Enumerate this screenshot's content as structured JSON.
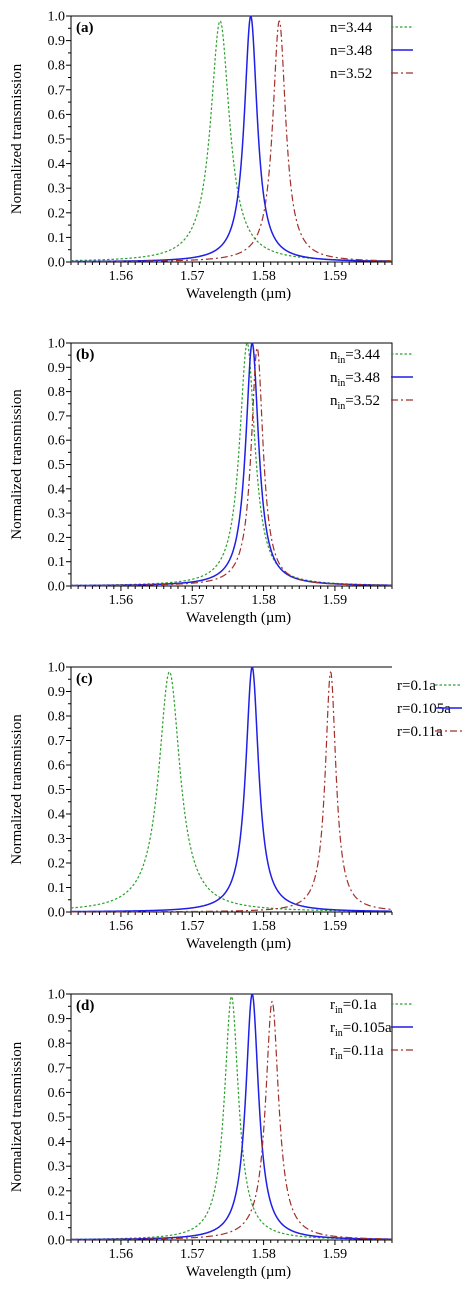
{
  "chart_data": [
    {
      "type": "line",
      "panel_label": "(a)",
      "xlabel": "Wavelength (µm)",
      "ylabel": "Normalized transmission",
      "xlim": [
        1.553,
        1.598
      ],
      "ylim": [
        0.0,
        1.0
      ],
      "x_ticks": [
        "1.56",
        "1.57",
        "1.58",
        "1.59"
      ],
      "y_ticks": [
        "0.0",
        "0.1",
        "0.2",
        "0.3",
        "0.4",
        "0.5",
        "0.6",
        "0.7",
        "0.8",
        "0.9",
        "1.0"
      ],
      "legend": "top-right",
      "grid": false,
      "series": [
        {
          "name": "n=3.44",
          "name_base": "n",
          "name_sub": "",
          "name_rest": "=3.44",
          "color": "#2ca02c",
          "style": "dotted",
          "center": 1.5739,
          "hwhm": 0.0016,
          "peak": 0.98
        },
        {
          "name": "n=3.48",
          "name_base": "n",
          "name_sub": "",
          "name_rest": "=3.48",
          "color": "#1f1fe6",
          "style": "solid",
          "center": 1.5782,
          "hwhm": 0.0011,
          "peak": 1.0
        },
        {
          "name": "n=3.52",
          "name_base": "n",
          "name_sub": "",
          "name_rest": "=3.52",
          "color": "#a0302a",
          "style": "dashdot",
          "center": 1.5822,
          "hwhm": 0.0011,
          "peak": 0.98
        }
      ]
    },
    {
      "type": "line",
      "panel_label": "(b)",
      "xlabel": "Wavelength (µm)",
      "ylabel": "Normalized transmission",
      "xlim": [
        1.553,
        1.598
      ],
      "ylim": [
        0.0,
        1.0
      ],
      "x_ticks": [
        "1.56",
        "1.57",
        "1.58",
        "1.59"
      ],
      "y_ticks": [
        "0.0",
        "0.1",
        "0.2",
        "0.3",
        "0.4",
        "0.5",
        "0.6",
        "0.7",
        "0.8",
        "0.9",
        "1.0"
      ],
      "legend": "top-right",
      "grid": false,
      "series": [
        {
          "name": "nin=3.44",
          "name_base": "n",
          "name_sub": "in",
          "name_rest": "=3.44",
          "color": "#2ca02c",
          "style": "dotted",
          "center": 1.5777,
          "hwhm": 0.0013,
          "peak": 1.0
        },
        {
          "name": "nin=3.48",
          "name_base": "n",
          "name_sub": "in",
          "name_rest": "=3.48",
          "color": "#1f1fe6",
          "style": "solid",
          "center": 1.5784,
          "hwhm": 0.0011,
          "peak": 1.0
        },
        {
          "name": "nin=3.52",
          "name_base": "n",
          "name_sub": "in",
          "name_rest": "=3.52",
          "color": "#a0302a",
          "style": "dashdot",
          "center": 1.5791,
          "hwhm": 0.001,
          "peak": 0.98
        }
      ]
    },
    {
      "type": "line",
      "panel_label": "(c)",
      "xlabel": "Wavelength (µm)",
      "ylabel": "Normalized transmission",
      "xlim": [
        1.553,
        1.598
      ],
      "ylim": [
        0.0,
        1.0
      ],
      "x_ticks": [
        "1.56",
        "1.57",
        "1.58",
        "1.59"
      ],
      "y_ticks": [
        "0.0",
        "0.1",
        "0.2",
        "0.3",
        "0.4",
        "0.5",
        "0.6",
        "0.7",
        "0.8",
        "0.9",
        "1.0"
      ],
      "legend": "outside-right",
      "grid": false,
      "series": [
        {
          "name": "r=0.1a",
          "name_base": "r",
          "name_sub": "",
          "name_rest": "=0.1a",
          "color": "#2ca02c",
          "style": "dotted",
          "center": 1.5668,
          "hwhm": 0.0018,
          "peak": 0.98
        },
        {
          "name": "r=0.105a",
          "name_base": "r",
          "name_sub": "",
          "name_rest": "=0.105a",
          "color": "#1f1fe6",
          "style": "solid",
          "center": 1.5784,
          "hwhm": 0.0011,
          "peak": 1.0
        },
        {
          "name": "r=0.11a",
          "name_base": "r",
          "name_sub": "",
          "name_rest": "=0.11a",
          "color": "#a0302a",
          "style": "dashdot",
          "center": 1.5894,
          "hwhm": 0.0009,
          "peak": 0.98
        }
      ]
    },
    {
      "type": "line",
      "panel_label": "(d)",
      "xlabel": "Wavelength (µm)",
      "ylabel": "Normalized transmission",
      "xlim": [
        1.553,
        1.598
      ],
      "ylim": [
        0.0,
        1.0
      ],
      "x_ticks": [
        "1.56",
        "1.57",
        "1.58",
        "1.59"
      ],
      "y_ticks": [
        "0.0",
        "0.1",
        "0.2",
        "0.3",
        "0.4",
        "0.5",
        "0.6",
        "0.7",
        "0.8",
        "0.9",
        "1.0"
      ],
      "legend": "top-right",
      "grid": false,
      "series": [
        {
          "name": "rin=0.1a",
          "name_base": "r",
          "name_sub": "in",
          "name_rest": "=0.1a",
          "color": "#2ca02c",
          "style": "dotted",
          "center": 1.5755,
          "hwhm": 0.0012,
          "peak": 0.99
        },
        {
          "name": "rin=0.105a",
          "name_base": "r",
          "name_sub": "in",
          "name_rest": "=0.105a",
          "color": "#1f1fe6",
          "style": "solid",
          "center": 1.5784,
          "hwhm": 0.0011,
          "peak": 1.0
        },
        {
          "name": "rin=0.11a",
          "name_base": "r",
          "name_sub": "in",
          "name_rest": "=0.11a",
          "color": "#a0302a",
          "style": "dashdot",
          "center": 1.5812,
          "hwhm": 0.0011,
          "peak": 0.97
        }
      ]
    }
  ]
}
